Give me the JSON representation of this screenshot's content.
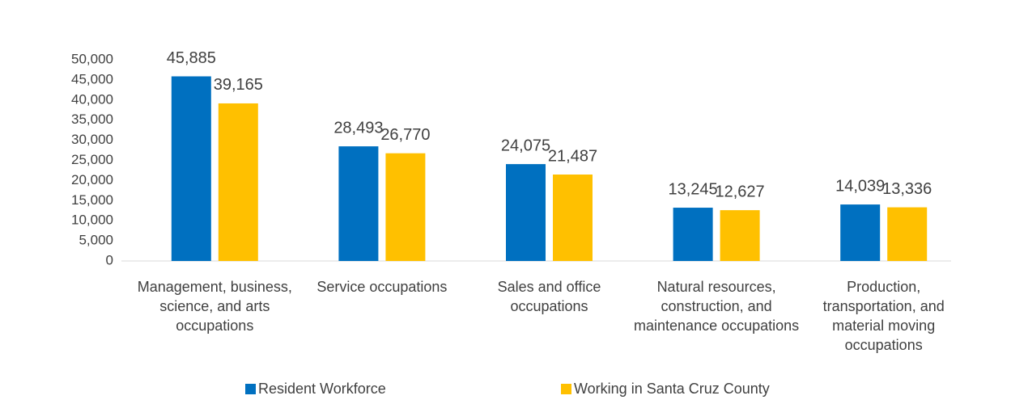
{
  "chart_data": {
    "type": "bar",
    "categories": [
      "Management, business, science, and arts occupations",
      "Service occupations",
      "Sales and office occupations",
      "Natural resources, construction, and maintenance occupations",
      "Production, transportation, and material moving occupations"
    ],
    "series": [
      {
        "name": "Resident Workforce",
        "color": "#0070c0",
        "values": [
          45885,
          28493,
          24075,
          13245,
          14039
        ],
        "value_labels": [
          "45,885",
          "28,493",
          "24,075",
          "13,245",
          "14,039"
        ]
      },
      {
        "name": "Working in Santa Cruz County",
        "color": "#ffc000",
        "values": [
          39165,
          26770,
          21487,
          12627,
          13336
        ],
        "value_labels": [
          "39,165",
          "26,770",
          "21,487",
          "12,627",
          "13,336"
        ]
      }
    ],
    "ylim": [
      0,
      50000
    ],
    "yticks": [
      0,
      {
        "value": 5000,
        "label": "5,000"
      },
      {
        "value": 10000,
        "label": "10,000"
      },
      {
        "value": 15000,
        "label": "15,000"
      },
      {
        "value": 20000,
        "label": "20,000"
      },
      {
        "value": 25000,
        "label": "25,000"
      },
      {
        "value": 30000,
        "label": "30,000"
      },
      {
        "value": 35000,
        "label": "35,000"
      },
      {
        "value": 40000,
        "label": "40,000"
      },
      {
        "value": 45000,
        "label": "45,000"
      },
      {
        "value": 50000,
        "label": "50,000"
      }
    ],
    "grid": false,
    "legend": "bottom"
  }
}
